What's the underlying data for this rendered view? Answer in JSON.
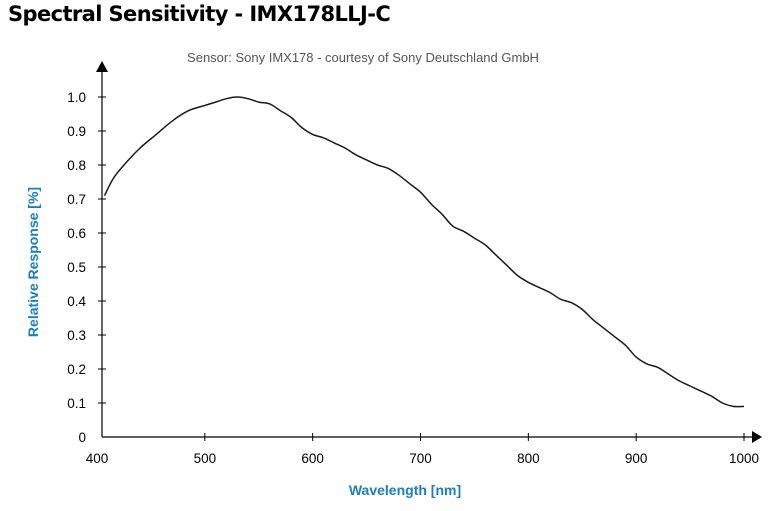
{
  "page": {
    "title": "Spectral Sensitivity - IMX178LLJ-C"
  },
  "chart_data": {
    "type": "line",
    "title": "Spectral Sensitivity - IMX178LLJ-C",
    "subtitle": "Sensor: Sony IMX178 - courtesy of Sony Deutschland GmbH",
    "xlabel": "Wavelength [nm]",
    "ylabel": "Relative Response [%]",
    "xlim": [
      400,
      1000
    ],
    "ylim": [
      0,
      1.0
    ],
    "x_ticks": [
      400,
      500,
      600,
      700,
      800,
      900,
      1000
    ],
    "y_ticks": [
      0,
      0.1,
      0.2,
      0.3,
      0.4,
      0.5,
      0.6,
      0.7,
      0.8,
      0.9,
      1.0
    ],
    "y_tick_labels": [
      "0",
      "0.1",
      "0.2",
      "0.3",
      "0.4",
      "0.5",
      "0.6",
      "0.7",
      "0.8",
      "0.9",
      "1.0"
    ],
    "grid": false,
    "series": [
      {
        "color": "#1a1a1a",
        "x": [
          407,
          415,
          425,
          440,
          455,
          470,
          485,
          500,
          510,
          520,
          530,
          540,
          550,
          560,
          570,
          580,
          590,
          600,
          610,
          620,
          630,
          640,
          650,
          660,
          670,
          680,
          690,
          700,
          710,
          720,
          730,
          740,
          750,
          760,
          770,
          780,
          790,
          800,
          810,
          820,
          830,
          840,
          850,
          860,
          870,
          880,
          890,
          900,
          910,
          920,
          930,
          940,
          950,
          960,
          970,
          980,
          990,
          1000
        ],
        "y": [
          0.71,
          0.76,
          0.8,
          0.85,
          0.89,
          0.93,
          0.96,
          0.975,
          0.985,
          0.995,
          1.0,
          0.995,
          0.985,
          0.98,
          0.96,
          0.94,
          0.91,
          0.89,
          0.88,
          0.865,
          0.85,
          0.83,
          0.815,
          0.8,
          0.79,
          0.77,
          0.745,
          0.72,
          0.685,
          0.655,
          0.62,
          0.605,
          0.585,
          0.565,
          0.535,
          0.505,
          0.475,
          0.455,
          0.44,
          0.425,
          0.405,
          0.395,
          0.375,
          0.345,
          0.32,
          0.295,
          0.27,
          0.235,
          0.215,
          0.205,
          0.185,
          0.165,
          0.15,
          0.135,
          0.12,
          0.1,
          0.09,
          0.09
        ]
      }
    ]
  }
}
